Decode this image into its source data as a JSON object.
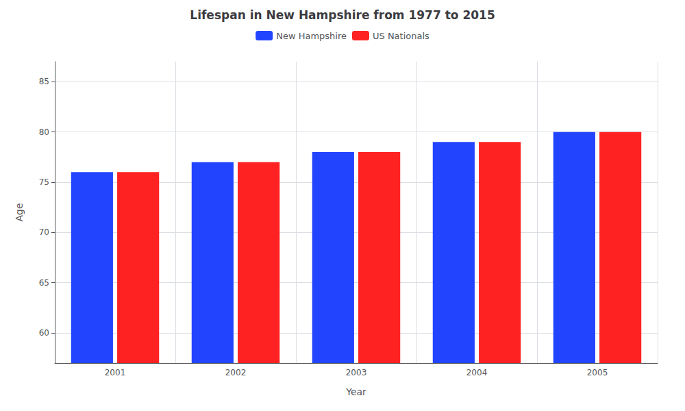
{
  "chart_data": {
    "type": "bar",
    "title": "Lifespan in New Hampshire from 1977 to 2015",
    "xlabel": "Year",
    "ylabel": "Age",
    "categories": [
      "2001",
      "2002",
      "2003",
      "2004",
      "2005"
    ],
    "series": [
      {
        "name": "New Hampshire",
        "color": "#2244ff",
        "values": [
          76,
          77,
          78,
          79,
          80
        ]
      },
      {
        "name": "US Nationals",
        "color": "#ff2222",
        "values": [
          76,
          77,
          78,
          79,
          80
        ]
      }
    ],
    "ylim": [
      57,
      87
    ],
    "yticks": [
      60,
      65,
      70,
      75,
      80,
      85
    ],
    "grid": true,
    "legend": "top"
  }
}
